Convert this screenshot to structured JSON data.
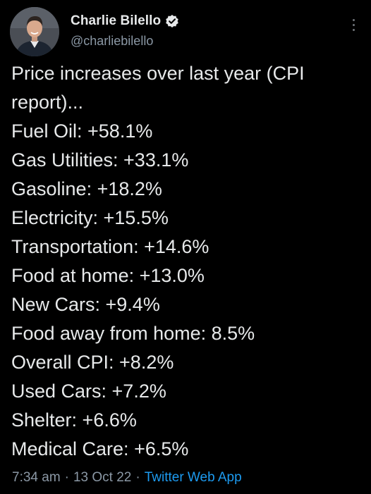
{
  "author": {
    "display_name": "Charlie Bilello",
    "handle": "@charliebilello",
    "verified": true
  },
  "tweet": {
    "lines": [
      "Price increases over last year (CPI",
      "report)...",
      "Fuel Oil: +58.1%",
      "Gas Utilities: +33.1%",
      "Gasoline: +18.2%",
      "Electricity: +15.5%",
      "Transportation: +14.6%",
      "Food at home: +13.0%",
      "New Cars: +9.4%",
      "Food away from home: 8.5%",
      "Overall CPI: +8.2%",
      "Used Cars: +7.2%",
      "Shelter: +6.6%",
      "Medical Care: +6.5%"
    ]
  },
  "meta": {
    "time": "7:34 am",
    "separator": "·",
    "date": "13 Oct 22",
    "source": "Twitter Web App"
  },
  "icons": {
    "verified": "verified-badge-icon",
    "more": "more-options-icon"
  },
  "colors": {
    "background": "#000000",
    "text": "#e7e9ea",
    "secondary": "#8b98a5",
    "link": "#1d9bf0"
  }
}
